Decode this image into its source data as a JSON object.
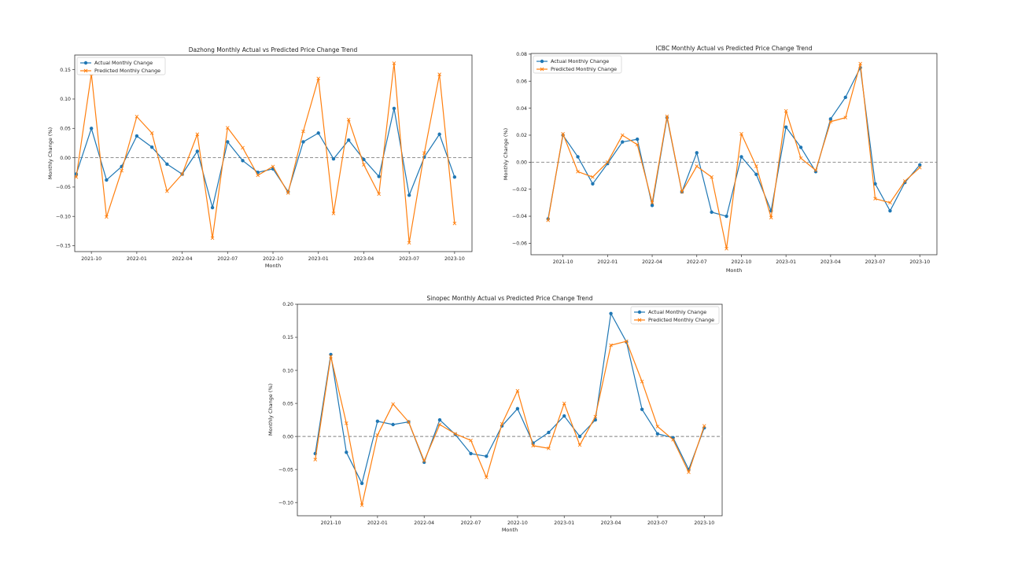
{
  "colors": {
    "actual": "#1f77b4",
    "predicted": "#ff7f0e",
    "zero": "#808080"
  },
  "chart_data": [
    {
      "type": "line",
      "title": "Dazhong Monthly Actual vs Predicted Price Change Trend",
      "xlabel": "Month",
      "ylabel": "Monthly Change (%)",
      "ylim": [
        -0.16,
        0.175
      ],
      "yticks": [
        -0.15,
        -0.1,
        -0.05,
        0.0,
        0.05,
        0.1,
        0.15
      ],
      "ytick_labels": [
        "−0.15",
        "−0.10",
        "−0.05",
        "0.00",
        "0.05",
        "0.10",
        "0.15"
      ],
      "xticks": [
        1,
        4,
        7,
        10,
        13,
        16,
        19,
        22,
        25
      ],
      "xtick_labels": [
        "2021-10",
        "2022-01",
        "2022-04",
        "2022-07",
        "2022-10",
        "2023-01",
        "2023-04",
        "2023-07",
        "2023-10"
      ],
      "xlim": [
        -0.1,
        26.15
      ],
      "legend_position": "top-left",
      "series": [
        {
          "name": "Actual Monthly Change",
          "values": [
            -0.028,
            0.05,
            -0.038,
            -0.015,
            0.037,
            0.018,
            -0.011,
            -0.028,
            0.011,
            -0.085,
            0.027,
            -0.005,
            -0.025,
            -0.019,
            -0.058,
            0.027,
            0.042,
            -0.002,
            0.03,
            -0.003,
            -0.032,
            0.084,
            -0.064,
            0.001,
            0.04,
            -0.033
          ]
        },
        {
          "name": "Predicted Monthly Change",
          "values": [
            -0.033,
            0.143,
            -0.101,
            -0.022,
            0.07,
            0.042,
            -0.057,
            -0.028,
            0.04,
            -0.137,
            0.051,
            0.017,
            -0.03,
            -0.015,
            -0.06,
            0.045,
            0.135,
            -0.095,
            0.065,
            -0.012,
            -0.062,
            0.161,
            -0.145,
            0.008,
            0.142,
            -0.112
          ]
        }
      ]
    },
    {
      "type": "line",
      "title": "ICBC Monthly Actual vs Predicted Price Change Trend",
      "xlabel": "Month",
      "ylabel": "Monthly Change (%)",
      "ylim": [
        -0.0685,
        0.0805
      ],
      "yticks": [
        -0.06,
        -0.04,
        -0.02,
        0.0,
        0.02,
        0.04,
        0.06,
        0.08
      ],
      "ytick_labels": [
        "−0.06",
        "−0.04",
        "−0.02",
        "0.00",
        "0.02",
        "0.04",
        "0.06",
        "0.08"
      ],
      "xticks": [
        1,
        4,
        7,
        10,
        13,
        16,
        19,
        22,
        25
      ],
      "xtick_labels": [
        "2021-10",
        "2022-01",
        "2022-04",
        "2022-07",
        "2022-10",
        "2023-01",
        "2023-04",
        "2023-07",
        "2023-10"
      ],
      "xlim": [
        -1.15,
        26.15
      ],
      "legend_position": "top-left",
      "series": [
        {
          "name": "Actual Monthly Change",
          "values": [
            -0.042,
            0.02,
            0.004,
            -0.016,
            -0.001,
            0.015,
            0.017,
            -0.032,
            0.033,
            -0.022,
            0.007,
            -0.037,
            -0.04,
            0.004,
            -0.009,
            -0.036,
            0.026,
            0.011,
            -0.007,
            0.032,
            0.048,
            0.07,
            -0.016,
            -0.036,
            -0.015,
            -0.002
          ]
        },
        {
          "name": "Predicted Monthly Change",
          "values": [
            -0.043,
            0.021,
            -0.007,
            -0.011,
            0.0,
            0.02,
            0.013,
            -0.03,
            0.034,
            -0.022,
            -0.003,
            -0.011,
            -0.064,
            0.021,
            -0.003,
            -0.041,
            0.038,
            0.003,
            -0.006,
            0.03,
            0.033,
            0.073,
            -0.027,
            -0.03,
            -0.014,
            -0.004
          ]
        }
      ]
    },
    {
      "type": "line",
      "title": "Sinopec Monthly Actual vs Predicted Price Change Trend",
      "xlabel": "Month",
      "ylabel": "Monthly Change (%)",
      "ylim": [
        -0.12,
        0.2
      ],
      "yticks": [
        -0.1,
        -0.05,
        0.0,
        0.05,
        0.1,
        0.15,
        0.2
      ],
      "ytick_labels": [
        "−0.10",
        "−0.05",
        "0.00",
        "0.05",
        "0.10",
        "0.15",
        "0.20"
      ],
      "xticks": [
        1,
        4,
        7,
        10,
        13,
        16,
        19,
        22,
        25
      ],
      "xtick_labels": [
        "2021-10",
        "2022-01",
        "2022-04",
        "2022-07",
        "2022-10",
        "2023-01",
        "2023-04",
        "2023-07",
        "2023-10"
      ],
      "xlim": [
        -1.15,
        26.15
      ],
      "legend_position": "top-right",
      "series": [
        {
          "name": "Actual Monthly Change",
          "values": [
            -0.026,
            0.124,
            -0.024,
            -0.071,
            0.023,
            0.018,
            0.022,
            -0.039,
            0.025,
            0.003,
            -0.026,
            -0.03,
            0.016,
            0.042,
            -0.01,
            0.006,
            0.031,
            0.0,
            0.025,
            0.186,
            0.143,
            0.041,
            0.004,
            -0.002,
            -0.05,
            0.013
          ]
        },
        {
          "name": "Predicted Monthly Change",
          "values": [
            -0.035,
            0.121,
            0.02,
            -0.104,
            0.002,
            0.049,
            0.022,
            -0.037,
            0.018,
            0.004,
            -0.006,
            -0.062,
            0.019,
            0.069,
            -0.014,
            -0.018,
            0.05,
            -0.013,
            0.03,
            0.138,
            0.144,
            0.083,
            0.015,
            -0.005,
            -0.054,
            0.016
          ]
        }
      ]
    }
  ]
}
